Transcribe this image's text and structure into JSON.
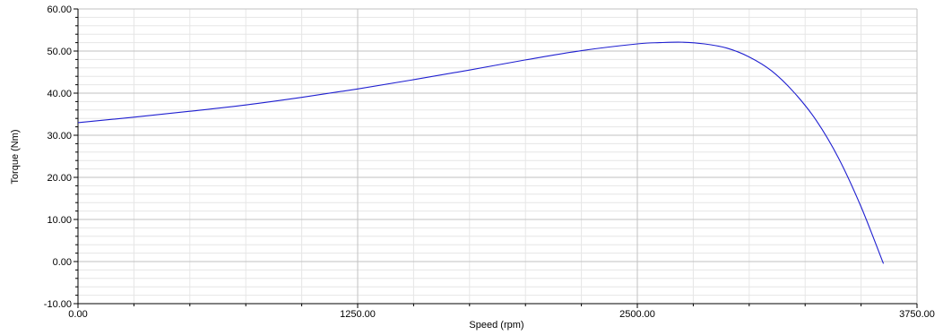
{
  "chart_data": {
    "type": "line",
    "title": "",
    "xlabel": "Speed (rpm)",
    "ylabel": "Torque (Nm)",
    "xlim": [
      0,
      3750
    ],
    "ylim": [
      -10,
      60
    ],
    "x_ticks": [
      {
        "value": 0,
        "label": "0.00"
      },
      {
        "value": 1250,
        "label": "1250.00"
      },
      {
        "value": 2500,
        "label": "2500.00"
      },
      {
        "value": 3750,
        "label": "3750.00"
      }
    ],
    "y_ticks": [
      {
        "value": -10,
        "label": "-10.00"
      },
      {
        "value": 0,
        "label": "0.00"
      },
      {
        "value": 10,
        "label": "10.00"
      },
      {
        "value": 20,
        "label": "20.00"
      },
      {
        "value": 30,
        "label": "30.00"
      },
      {
        "value": 40,
        "label": "40.00"
      },
      {
        "value": 50,
        "label": "50.00"
      },
      {
        "value": 60,
        "label": "60.00"
      }
    ],
    "x_minor_step": 250,
    "y_minor_step": 2,
    "grid": true,
    "legend": "none",
    "series": [
      {
        "color": "#1f1fd0",
        "x": [
          0,
          250,
          500,
          750,
          1000,
          1250,
          1500,
          1750,
          2000,
          2250,
          2500,
          2600,
          2700,
          2800,
          2900,
          3000,
          3100,
          3200,
          3300,
          3400,
          3500,
          3600
        ],
        "y": [
          33.0,
          34.3,
          35.7,
          37.2,
          39.0,
          41.0,
          43.2,
          45.5,
          47.9,
          50.1,
          51.7,
          52.0,
          52.1,
          51.7,
          50.7,
          48.6,
          45.3,
          40.2,
          33.5,
          24.5,
          13.0,
          -0.5
        ]
      }
    ]
  },
  "colors": {
    "grid_major": "#c2c2c2",
    "grid_minor": "#e6e6e6",
    "axis": "#000000",
    "line": "#1f1fd0"
  }
}
